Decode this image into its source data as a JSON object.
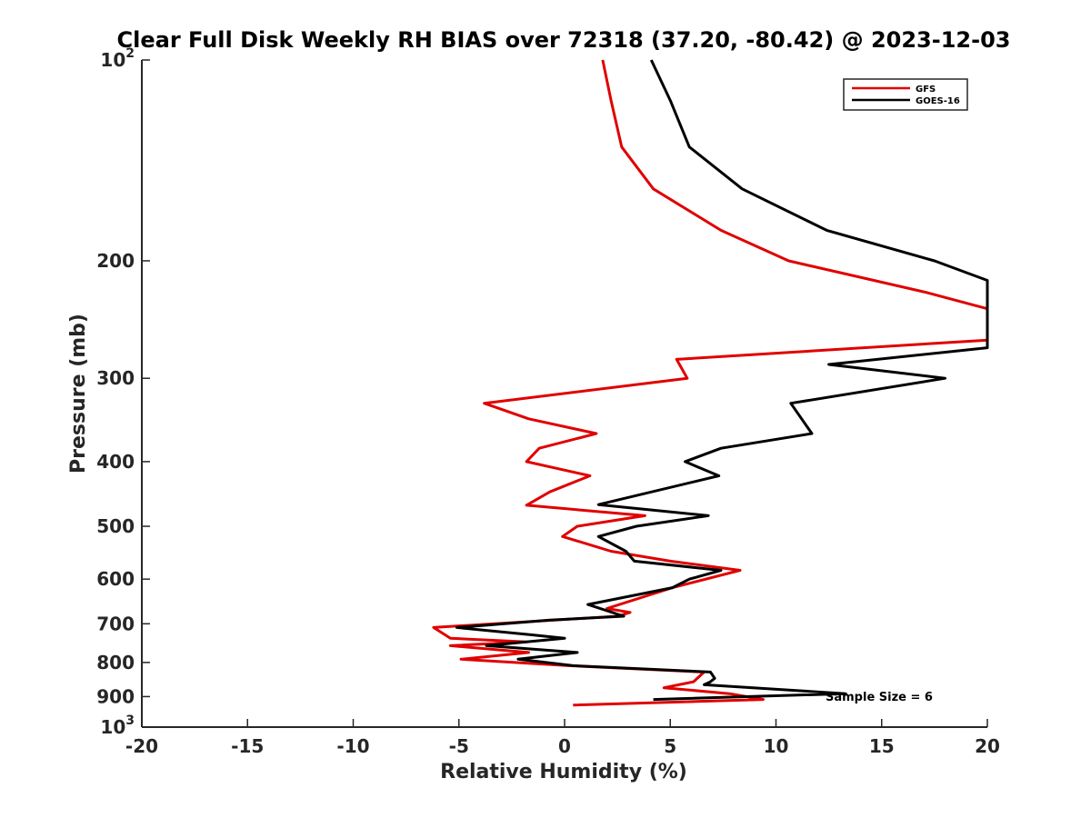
{
  "chart_data": {
    "type": "line",
    "title": "Clear Full Disk Weekly RH BIAS over 72318 (37.20, -80.42) @ 2023-12-03",
    "xlabel": "Relative Humidity (%)",
    "ylabel": "Pressure (mb)",
    "xlim": [
      -20,
      20
    ],
    "ylim": [
      100,
      1000
    ],
    "y_scale": "log",
    "y_reversed": true,
    "grid": false,
    "legend_position": "top-right",
    "x_ticks": [
      "-20",
      "-15",
      "-10",
      "-5",
      "0",
      "5",
      "10",
      "15",
      "20"
    ],
    "y_ticks": [
      {
        "value": 100,
        "base": "10",
        "exp": "2"
      },
      {
        "value": 200,
        "label": "200"
      },
      {
        "value": 300,
        "label": "300"
      },
      {
        "value": 400,
        "label": "400"
      },
      {
        "value": 500,
        "label": "500"
      },
      {
        "value": 600,
        "label": "600"
      },
      {
        "value": 700,
        "label": "700"
      },
      {
        "value": 800,
        "label": "800"
      },
      {
        "value": 900,
        "label": "900"
      },
      {
        "value": 1000,
        "base": "10",
        "exp": "3"
      }
    ],
    "annotation": "Sample Size = 6",
    "series": [
      {
        "name": "GFS",
        "color": "#e00000",
        "points": [
          [
            1.8,
            100
          ],
          [
            2.2,
            115
          ],
          [
            2.7,
            135
          ],
          [
            4.2,
            156
          ],
          [
            7.4,
            180
          ],
          [
            10.6,
            200
          ],
          [
            17.1,
            223
          ],
          [
            20,
            236
          ],
          [
            20,
            263
          ],
          [
            5.3,
            281
          ],
          [
            5.8,
            300
          ],
          [
            -3.8,
            327
          ],
          [
            -1.7,
            345
          ],
          [
            1.5,
            363
          ],
          [
            -1.2,
            382
          ],
          [
            -1.8,
            400
          ],
          [
            1.2,
            420
          ],
          [
            -0.7,
            444
          ],
          [
            -1.8,
            465
          ],
          [
            3.8,
            482
          ],
          [
            0.6,
            500
          ],
          [
            -0.1,
            518
          ],
          [
            2.2,
            545
          ],
          [
            5.0,
            564
          ],
          [
            8.3,
            582
          ],
          [
            5.1,
            618
          ],
          [
            2.0,
            664
          ],
          [
            3.1,
            673
          ],
          [
            2.5,
            682
          ],
          [
            -6.2,
            709
          ],
          [
            -5.4,
            736
          ],
          [
            -1.8,
            745
          ],
          [
            -5.4,
            755
          ],
          [
            -1.7,
            773
          ],
          [
            -4.9,
            791
          ],
          [
            0.2,
            809
          ],
          [
            6.6,
            827
          ],
          [
            6.1,
            855
          ],
          [
            4.7,
            873
          ],
          [
            7.8,
            891
          ],
          [
            9.4,
            909
          ],
          [
            0.4,
            927
          ]
        ]
      },
      {
        "name": "GOES-16",
        "color": "#000000",
        "points": [
          [
            4.1,
            100
          ],
          [
            5.0,
            115
          ],
          [
            5.9,
            135
          ],
          [
            8.4,
            156
          ],
          [
            12.4,
            180
          ],
          [
            17.5,
            200
          ],
          [
            20,
            214
          ],
          [
            20,
            270
          ],
          [
            12.5,
            286
          ],
          [
            18.0,
            300
          ],
          [
            10.7,
            327
          ],
          [
            11.7,
            363
          ],
          [
            7.4,
            382
          ],
          [
            5.7,
            400
          ],
          [
            7.3,
            420
          ],
          [
            1.6,
            464
          ],
          [
            6.8,
            482
          ],
          [
            3.4,
            500
          ],
          [
            1.6,
            518
          ],
          [
            2.9,
            545
          ],
          [
            3.3,
            564
          ],
          [
            7.4,
            582
          ],
          [
            5.9,
            600
          ],
          [
            5.1,
            618
          ],
          [
            1.1,
            655
          ],
          [
            2.8,
            682
          ],
          [
            -0.7,
            691
          ],
          [
            -5.1,
            709
          ],
          [
            -1.6,
            727
          ],
          [
            -0.0,
            736
          ],
          [
            -3.7,
            755
          ],
          [
            0.6,
            773
          ],
          [
            -2.2,
            791
          ],
          [
            0.4,
            809
          ],
          [
            6.9,
            827
          ],
          [
            7.1,
            845
          ],
          [
            6.9,
            855
          ],
          [
            6.6,
            864
          ],
          [
            13.3,
            891
          ],
          [
            4.2,
            909
          ]
        ]
      }
    ]
  }
}
